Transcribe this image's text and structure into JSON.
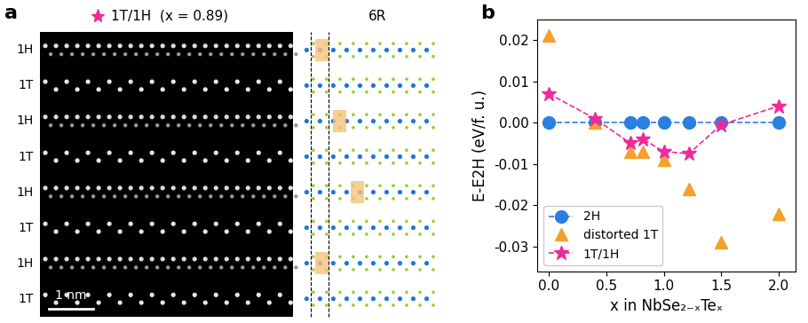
{
  "panel_a": {
    "label": "a",
    "title": "1T/1H  (x = 0.89)",
    "stacking_label": "6R",
    "layers": [
      "1H",
      "1T",
      "1H",
      "1T",
      "1H",
      "1T",
      "1H",
      "1T"
    ],
    "scale_bar": "1 nm"
  },
  "chart_data": {
    "type": "scatter",
    "panel_label": "b",
    "x_label": "x in NbSe₂₋ₓTeₓ",
    "y_label": "E-E2H (eV/f. u.)",
    "x": [
      0.0,
      0.4,
      0.71,
      0.82,
      1.0,
      1.22,
      1.5,
      2.0
    ],
    "series": [
      {
        "name": "2H",
        "color": "#2A7FE0",
        "marker": "circle",
        "line_style": "dashed",
        "values": [
          0.0,
          0.0,
          0.0,
          0.0,
          0.0,
          0.0,
          0.0,
          0.0
        ]
      },
      {
        "name": "distorted 1T",
        "color": "#F5A02D",
        "marker": "triangle",
        "line_style": "none",
        "values": [
          0.021,
          0.0,
          -0.007,
          -0.007,
          -0.009,
          -0.016,
          -0.029,
          -0.022
        ]
      },
      {
        "name": "1T/1H",
        "color": "#EE2A9B",
        "marker": "star",
        "line_style": "dashed",
        "values": [
          0.007,
          0.001,
          -0.005,
          -0.004,
          -0.007,
          -0.0075,
          -0.0005,
          0.004
        ]
      }
    ],
    "xlim": [
      -0.1,
      2.15
    ],
    "ylim": [
      -0.036,
      0.025
    ],
    "xticks": [
      0.0,
      0.5,
      1.0,
      1.5,
      2.0
    ],
    "yticks": [
      -0.03,
      -0.02,
      -0.01,
      {
        "value": 0.0,
        "label": "0.00"
      },
      0.01,
      0.02
    ],
    "legend": "lower left"
  }
}
